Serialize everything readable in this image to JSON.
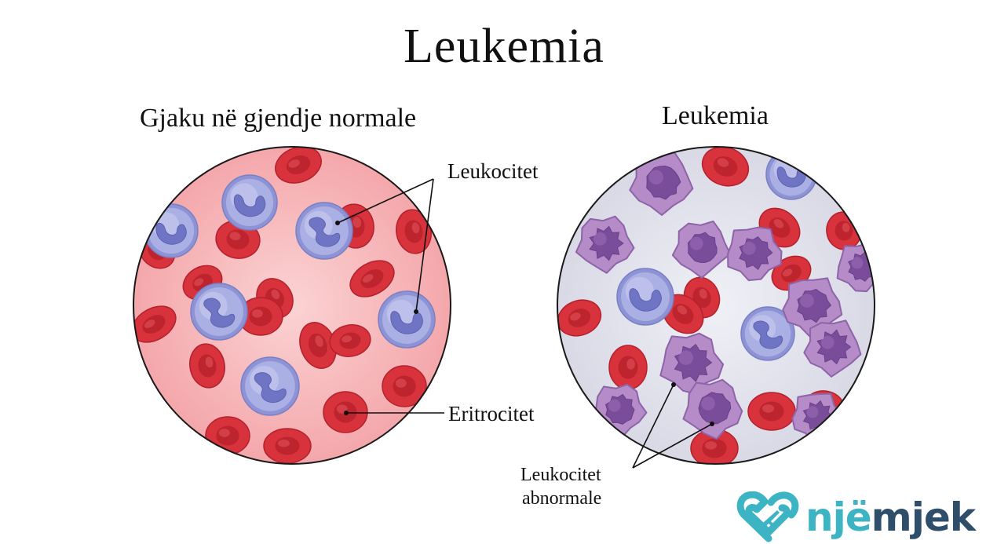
{
  "title": "Leukemia",
  "left_panel": {
    "heading": "Gjaku në gjendje normale"
  },
  "right_panel": {
    "heading": "Leukemia"
  },
  "labels": {
    "leukocytes": "Leukocitet",
    "erythrocytes": "Eritrocitet",
    "abnormal_line1": "Leukocitet",
    "abnormal_line2": "abnormale"
  },
  "logo": {
    "part1": "një",
    "part2": "mjek"
  },
  "colors": {
    "normal_plasma": "#f7b6b9",
    "leukemia_plasma": "#e4e4ee",
    "red_cell": "#d8323c",
    "white_cell": "#aab0e4",
    "white_nucleus": "#6f74c4",
    "abnormal_cell": "#b58bc8",
    "abnormal_nucleus": "#7a4d9a",
    "logo_teal": "#3cb4c4",
    "logo_navy": "#2f4e6a"
  }
}
